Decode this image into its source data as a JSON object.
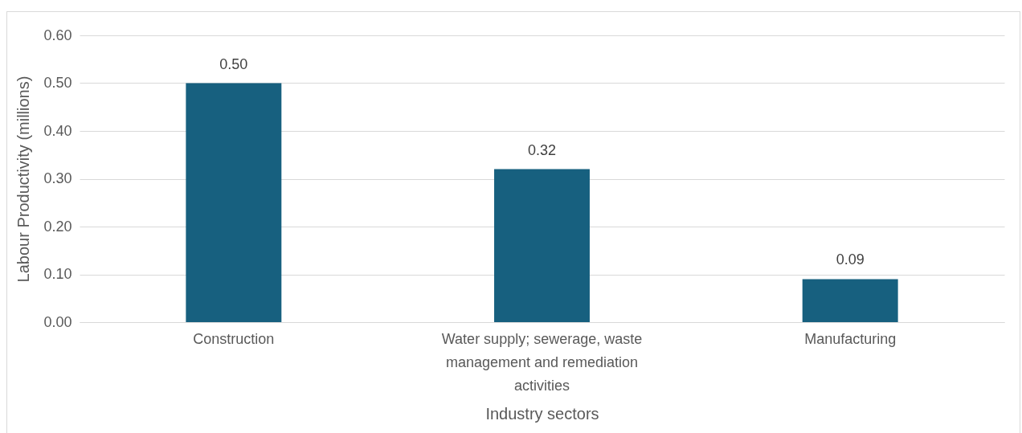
{
  "chart_data": {
    "type": "bar",
    "xlabel": "Industry sectors",
    "ylabel": "Labour Productivity (millions)",
    "categories": [
      "Construction",
      "Water supply; sewerage, waste management and remediation activities",
      "Manufacturing"
    ],
    "values": [
      0.5,
      0.32,
      0.09
    ],
    "value_labels": [
      "0.50",
      "0.32",
      "0.09"
    ],
    "color": "#17607f",
    "ylim": [
      0,
      0.6
    ],
    "yticks": [
      {
        "value": 0,
        "label": "0.00"
      },
      {
        "value": 0.1,
        "label": "0.10"
      },
      {
        "value": 0.2,
        "label": "0.20"
      },
      {
        "value": 0.3,
        "label": "0.30"
      },
      {
        "value": 0.4,
        "label": "0.40"
      },
      {
        "value": 0.5,
        "label": "0.50"
      },
      {
        "value": 0.6,
        "label": "0.60"
      }
    ],
    "grid": "y"
  }
}
